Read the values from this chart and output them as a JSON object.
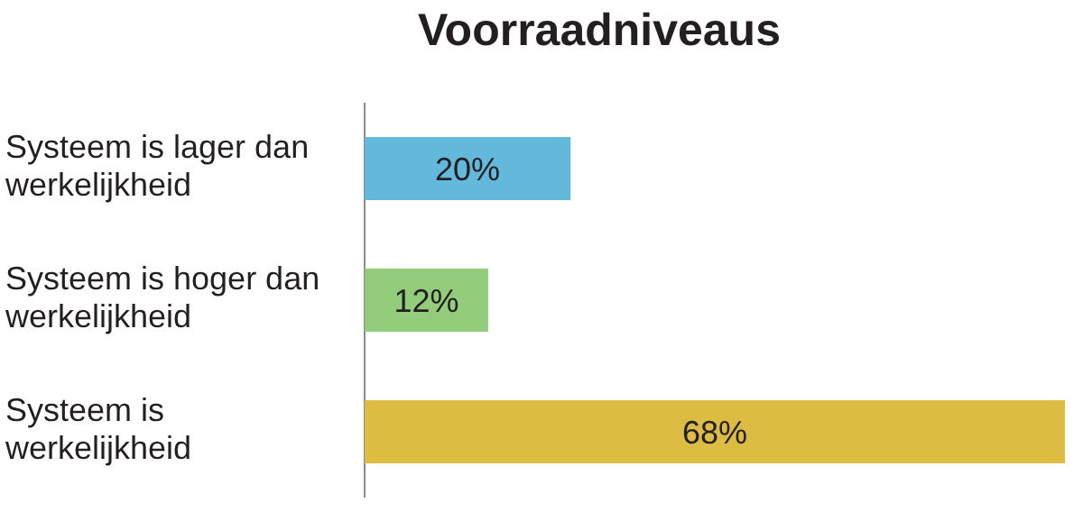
{
  "chart_data": {
    "type": "bar",
    "orientation": "horizontal",
    "title": "Voorraadniveaus",
    "categories": [
      "Systeem is lager dan werkelijkheid",
      "Systeem is hoger dan werkelijkheid",
      "Systeem is werkelijkheid"
    ],
    "values": [
      20,
      12,
      68
    ],
    "colors": [
      "#62b9dc",
      "#93cc7a",
      "#dcbd41"
    ],
    "value_labels": [
      "20%",
      "12%",
      "68%"
    ]
  }
}
